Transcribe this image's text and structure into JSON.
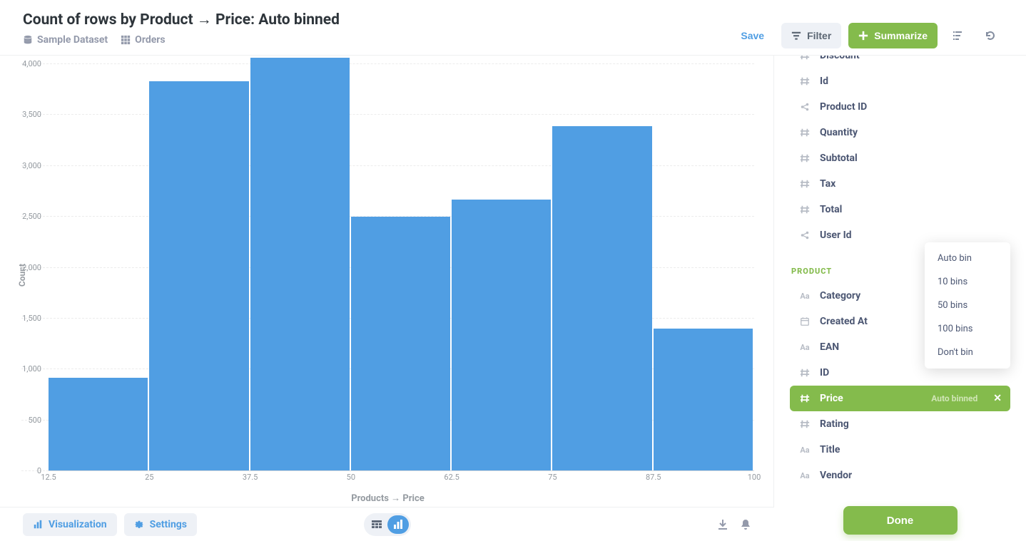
{
  "header": {
    "title": "Count of rows by Product → Price: Auto binned",
    "dataset_label": "Sample Dataset",
    "table_label": "Orders",
    "save_label": "Save",
    "filter_label": "Filter",
    "summarize_label": "Summarize"
  },
  "chart": {
    "type": "bar",
    "y_title": "Count",
    "x_title": "Products → Price",
    "bar_color": "#509ee3",
    "background_color": "#ffffff",
    "grid_color": "#ececec",
    "ylim": [
      0,
      4000
    ],
    "y_ticks": [
      0,
      500,
      1000,
      1500,
      2000,
      2500,
      3000,
      3500,
      4000
    ],
    "y_tick_labels": [
      "0",
      "500",
      "1,000",
      "1,500",
      "2,000",
      "2,500",
      "3,000",
      "3,500",
      "4,000"
    ],
    "x_tick_values": [
      12.5,
      25,
      37.5,
      50,
      62.5,
      75,
      87.5,
      100
    ],
    "x_tick_labels": [
      "12.5",
      "25",
      "37.5",
      "50",
      "62.5",
      "75",
      "87.5",
      "100"
    ],
    "xlim": [
      12.5,
      100
    ],
    "bar_width": 12.5,
    "bars": [
      {
        "x0": 12.5,
        "x1": 25,
        "value": 920
      },
      {
        "x0": 25,
        "x1": 37.5,
        "value": 3830
      },
      {
        "x0": 37.5,
        "x1": 50,
        "value": 4060
      },
      {
        "x0": 50,
        "x1": 62.5,
        "value": 2500
      },
      {
        "x0": 62.5,
        "x1": 75,
        "value": 2670
      },
      {
        "x0": 75,
        "x1": 87.5,
        "value": 3390
      },
      {
        "x0": 87.5,
        "x1": 100,
        "value": 1400
      }
    ],
    "label_fontsize": 12,
    "tick_fontsize": 11
  },
  "footer": {
    "visualization_label": "Visualization",
    "settings_label": "Settings"
  },
  "sidebar": {
    "top_fields": [
      {
        "icon": "hash",
        "label": "Discount"
      },
      {
        "icon": "hash",
        "label": "Id"
      },
      {
        "icon": "share",
        "label": "Product ID"
      },
      {
        "icon": "hash",
        "label": "Quantity"
      },
      {
        "icon": "hash",
        "label": "Subtotal"
      },
      {
        "icon": "hash",
        "label": "Tax"
      },
      {
        "icon": "hash",
        "label": "Total"
      },
      {
        "icon": "share",
        "label": "User Id"
      }
    ],
    "group_label": "PRODUCT",
    "product_fields": [
      {
        "icon": "aa",
        "label": "Category",
        "selected": false
      },
      {
        "icon": "cal",
        "label": "Created At",
        "selected": false
      },
      {
        "icon": "aa",
        "label": "EAN",
        "selected": false
      },
      {
        "icon": "hash",
        "label": "ID",
        "selected": false
      },
      {
        "icon": "hash",
        "label": "Price",
        "selected": true,
        "badge": "Auto binned"
      },
      {
        "icon": "hash",
        "label": "Rating",
        "selected": false
      },
      {
        "icon": "aa",
        "label": "Title",
        "selected": false
      },
      {
        "icon": "aa",
        "label": "Vendor",
        "selected": false
      }
    ],
    "done_label": "Done"
  },
  "bin_menu": {
    "options": [
      "Auto bin",
      "10 bins",
      "50 bins",
      "100 bins",
      "Don't bin"
    ]
  }
}
